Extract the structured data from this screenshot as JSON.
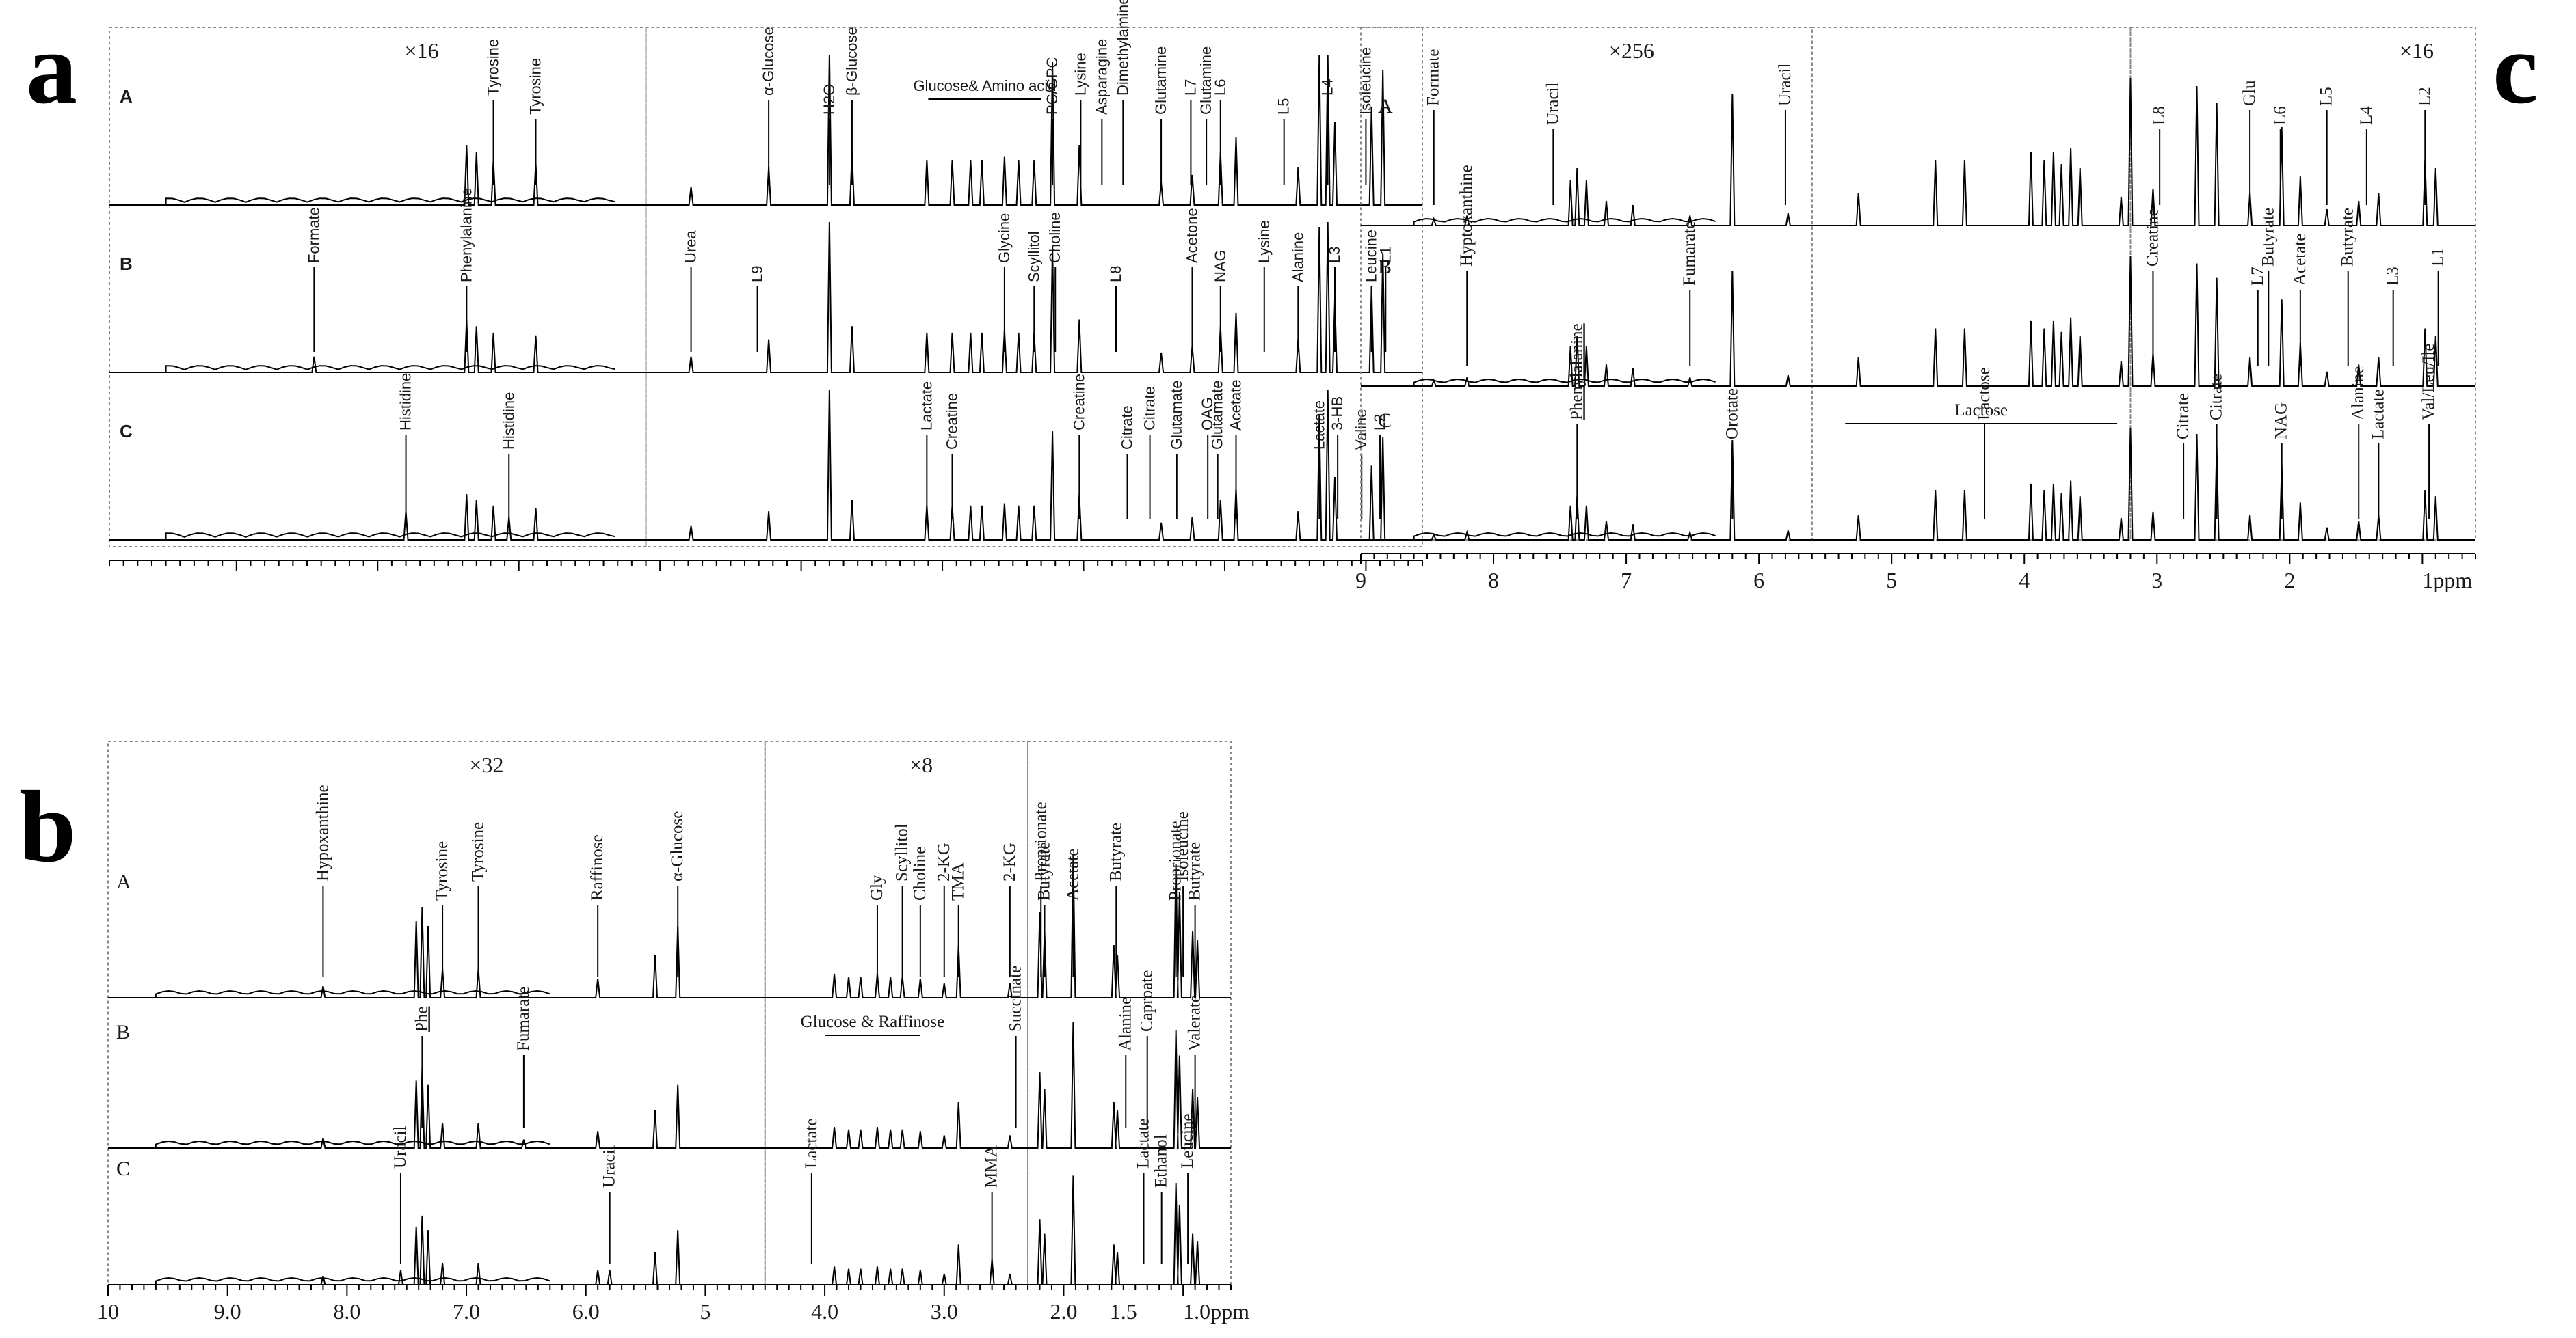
{
  "chart_data": [
    {
      "type": "line",
      "panel": "a",
      "title": "",
      "xlabel": "ppm",
      "xlim": [
        9.9,
        0.6
      ],
      "spectra": [
        "A",
        "B",
        "C"
      ],
      "expansion": [
        {
          "label": "×16",
          "region": [
            9.9,
            6.1
          ]
        }
      ],
      "regions": [
        [
          9.9,
          6.1
        ],
        [
          6.1,
          0.6
        ]
      ],
      "water_cut": [
        4.85,
        4.7
      ],
      "bracket_labels": [
        {
          "spectrum": "A",
          "text": "Glucose& Amino acid",
          "from": 4.1,
          "to": 3.3
        }
      ],
      "annotations": {
        "A": [
          {
            "label": "Tyrosine",
            "ppm": 7.18
          },
          {
            "label": "Tyrosine",
            "ppm": 6.88
          },
          {
            "label": "α-Glucose",
            "ppm": 5.23
          },
          {
            "label": "H2O",
            "ppm": 4.8
          },
          {
            "label": "β-Glucose",
            "ppm": 4.64
          },
          {
            "label": "PC/GPC",
            "ppm": 3.22
          },
          {
            "label": "Lysine",
            "ppm": 3.02
          },
          {
            "label": "Asparagine",
            "ppm": 2.87
          },
          {
            "label": "Dimethylamine",
            "ppm": 2.72
          },
          {
            "label": "Glutamine",
            "ppm": 2.45
          },
          {
            "label": "L7",
            "ppm": 2.24
          },
          {
            "label": "Glutamine",
            "ppm": 2.13
          },
          {
            "label": "L6",
            "ppm": 2.03
          },
          {
            "label": "L5",
            "ppm": 1.58
          },
          {
            "label": "L4",
            "ppm": 1.27
          },
          {
            "label": "Isoleucine",
            "ppm": 1.0
          }
        ],
        "B": [
          {
            "label": "Formate",
            "ppm": 8.45
          },
          {
            "label": "Phenylalanine",
            "ppm": 7.37
          },
          {
            "label": "Urea",
            "ppm": 5.78
          },
          {
            "label": "L9",
            "ppm": 5.31
          },
          {
            "label": "Glycine",
            "ppm": 3.56
          },
          {
            "label": "Scyllitol",
            "ppm": 3.35
          },
          {
            "label": "Choline",
            "ppm": 3.2
          },
          {
            "label": "L8",
            "ppm": 2.77
          },
          {
            "label": "Acetone",
            "ppm": 2.23
          },
          {
            "label": "NAG",
            "ppm": 2.03
          },
          {
            "label": "Lysine",
            "ppm": 1.72
          },
          {
            "label": "Alanine",
            "ppm": 1.48
          },
          {
            "label": "L3",
            "ppm": 1.22
          },
          {
            "label": "Leucine",
            "ppm": 0.96
          },
          {
            "label": "L1",
            "ppm": 0.86
          }
        ],
        "C": [
          {
            "label": "Histidine",
            "ppm": 7.8
          },
          {
            "label": "Histidine",
            "ppm": 7.07
          },
          {
            "label": "Lactate",
            "ppm": 4.11
          },
          {
            "label": "Creatine",
            "ppm": 3.93
          },
          {
            "label": "Creatine",
            "ppm": 3.03
          },
          {
            "label": "Citrate",
            "ppm": 2.69
          },
          {
            "label": "Citrate",
            "ppm": 2.53
          },
          {
            "label": "Glutamate",
            "ppm": 2.34
          },
          {
            "label": "OAG",
            "ppm": 2.12
          },
          {
            "label": "Glutamate",
            "ppm": 2.05
          },
          {
            "label": "Acetate",
            "ppm": 1.92
          },
          {
            "label": "Lactate",
            "ppm": 1.33
          },
          {
            "label": "3-HB",
            "ppm": 1.2
          },
          {
            "label": "Valine",
            "ppm": 1.03
          },
          {
            "label": "L2",
            "ppm": 0.9
          }
        ]
      },
      "peaks": [
        {
          "ppm": 8.45,
          "h": 0.12,
          "in": "B"
        },
        {
          "ppm": 7.37,
          "h": 0.4
        },
        {
          "ppm": 7.3,
          "h": 0.35
        },
        {
          "ppm": 7.18,
          "h": 0.3
        },
        {
          "ppm": 6.88,
          "h": 0.28
        },
        {
          "ppm": 7.8,
          "h": 0.25,
          "in": "C"
        },
        {
          "ppm": 7.07,
          "h": 0.2,
          "in": "C"
        },
        {
          "ppm": 5.78,
          "h": 0.12
        },
        {
          "ppm": 5.23,
          "h": 0.25
        },
        {
          "ppm": 4.8,
          "h": 1.6
        },
        {
          "ppm": 4.64,
          "h": 0.35
        },
        {
          "ppm": 4.11,
          "h": 0.3
        },
        {
          "ppm": 3.93,
          "h": 0.3
        },
        {
          "ppm": 3.8,
          "h": 0.3
        },
        {
          "ppm": 3.72,
          "h": 0.3
        },
        {
          "ppm": 3.56,
          "h": 0.32
        },
        {
          "ppm": 3.46,
          "h": 0.3
        },
        {
          "ppm": 3.35,
          "h": 0.3
        },
        {
          "ppm": 3.22,
          "h": 0.95
        },
        {
          "ppm": 3.03,
          "h": 0.4
        },
        {
          "ppm": 2.45,
          "h": 0.15
        },
        {
          "ppm": 2.23,
          "h": 0.2
        },
        {
          "ppm": 2.03,
          "h": 0.35
        },
        {
          "ppm": 1.92,
          "h": 0.45
        },
        {
          "ppm": 1.48,
          "h": 0.25
        },
        {
          "ppm": 1.33,
          "h": 1.1
        },
        {
          "ppm": 1.27,
          "h": 1.5
        },
        {
          "ppm": 1.22,
          "h": 0.55
        },
        {
          "ppm": 0.96,
          "h": 0.65
        },
        {
          "ppm": 0.88,
          "h": 0.9
        }
      ]
    },
    {
      "type": "line",
      "panel": "b",
      "title": "",
      "xlabel": "ppm",
      "xlim": [
        10.0,
        0.6
      ],
      "ticks": [
        10,
        9.0,
        8.0,
        7.0,
        6.0,
        5,
        4.0,
        3.0,
        2.0,
        1.5,
        1.0
      ],
      "tick_labels": [
        "10",
        "9.0",
        "8.0",
        "7.0",
        "6.0",
        "5",
        "4.0",
        "3.0",
        "2.0",
        "1.5",
        "1.0ppm"
      ],
      "spectra": [
        "A",
        "B",
        "C"
      ],
      "expansion": [
        {
          "label": "×32",
          "region": [
            10.0,
            4.5
          ]
        },
        {
          "label": "×8",
          "region": [
            4.5,
            2.3
          ]
        }
      ],
      "regions": [
        [
          10.0,
          4.5
        ],
        [
          4.5,
          2.3
        ],
        [
          2.3,
          0.6
        ]
      ],
      "bracket_labels": [
        {
          "spectrum": "B",
          "text": "Glucose & Raffinose",
          "from": 4.0,
          "to": 3.2
        }
      ],
      "underlined_labels": [
        "Phe"
      ],
      "annotations": {
        "A": [
          {
            "label": "Hypoxanthine",
            "ppm": 8.2
          },
          {
            "label": "Tyrosine",
            "ppm": 7.2
          },
          {
            "label": "Tyrosine",
            "ppm": 6.9
          },
          {
            "label": "Raffinose",
            "ppm": 5.9
          },
          {
            "label": "α-Glucose",
            "ppm": 5.23
          },
          {
            "label": "Gly",
            "ppm": 3.56
          },
          {
            "label": "Scyllitol",
            "ppm": 3.35
          },
          {
            "label": "Choline",
            "ppm": 3.2
          },
          {
            "label": "2-KG",
            "ppm": 3.0
          },
          {
            "label": "TMA",
            "ppm": 2.88
          },
          {
            "label": "2-KG",
            "ppm": 2.45
          },
          {
            "label": "Butyrate",
            "ppm": 2.16
          },
          {
            "label": "Proprionate",
            "ppm": 2.19
          },
          {
            "label": "Acetate",
            "ppm": 1.92
          },
          {
            "label": "Butyrate",
            "ppm": 1.56
          },
          {
            "label": "Proprionate",
            "ppm": 1.06
          },
          {
            "label": "Isoleucine",
            "ppm": 1.0
          },
          {
            "label": "Butyrate",
            "ppm": 0.9
          }
        ],
        "B": [
          {
            "label": "Phe",
            "ppm": 7.37
          },
          {
            "label": "Fumarate",
            "ppm": 6.52
          },
          {
            "label": "Succinate",
            "ppm": 2.4
          },
          {
            "label": "Alanine",
            "ppm": 1.48
          },
          {
            "label": "Caproate",
            "ppm": 1.3
          },
          {
            "label": "Valerate",
            "ppm": 0.9
          }
        ],
        "C": [
          {
            "label": "Uracil",
            "ppm": 7.55
          },
          {
            "label": "Uracil",
            "ppm": 5.8
          },
          {
            "label": "Lactate",
            "ppm": 4.11
          },
          {
            "label": "MMA",
            "ppm": 2.6
          },
          {
            "label": "Lactate",
            "ppm": 1.33
          },
          {
            "label": "Ethanol",
            "ppm": 1.18
          },
          {
            "label": "Leucine",
            "ppm": 0.96
          }
        ]
      },
      "peaks": [
        {
          "ppm": 8.2,
          "h": 0.12
        },
        {
          "ppm": 7.42,
          "h": 0.8
        },
        {
          "ppm": 7.37,
          "h": 0.95
        },
        {
          "ppm": 7.32,
          "h": 0.75
        },
        {
          "ppm": 7.2,
          "h": 0.3
        },
        {
          "ppm": 6.9,
          "h": 0.3
        },
        {
          "ppm": 6.52,
          "h": 0.1,
          "in": "B"
        },
        {
          "ppm": 7.55,
          "h": 0.2,
          "in": "C"
        },
        {
          "ppm": 5.9,
          "h": 0.2
        },
        {
          "ppm": 5.8,
          "h": 0.2,
          "in": "C"
        },
        {
          "ppm": 5.42,
          "h": 0.45
        },
        {
          "ppm": 5.23,
          "h": 0.75
        },
        {
          "ppm": 3.92,
          "h": 0.25
        },
        {
          "ppm": 3.8,
          "h": 0.22
        },
        {
          "ppm": 3.7,
          "h": 0.22
        },
        {
          "ppm": 3.56,
          "h": 0.25
        },
        {
          "ppm": 3.45,
          "h": 0.22
        },
        {
          "ppm": 3.35,
          "h": 0.22
        },
        {
          "ppm": 3.2,
          "h": 0.2
        },
        {
          "ppm": 3.0,
          "h": 0.15
        },
        {
          "ppm": 2.88,
          "h": 0.55
        },
        {
          "ppm": 2.6,
          "h": 0.35,
          "in": "C"
        },
        {
          "ppm": 2.45,
          "h": 0.15
        },
        {
          "ppm": 2.2,
          "h": 0.9
        },
        {
          "ppm": 2.16,
          "h": 0.7
        },
        {
          "ppm": 1.92,
          "h": 1.5
        },
        {
          "ppm": 1.58,
          "h": 0.55
        },
        {
          "ppm": 1.55,
          "h": 0.45
        },
        {
          "ppm": 1.06,
          "h": 1.4
        },
        {
          "ppm": 1.03,
          "h": 1.1
        },
        {
          "ppm": 0.92,
          "h": 0.7
        },
        {
          "ppm": 0.88,
          "h": 0.6
        }
      ]
    },
    {
      "type": "line",
      "panel": "c",
      "title": "",
      "xlabel": "ppm",
      "xlim": [
        9.0,
        0.6
      ],
      "ticks": [
        9,
        8,
        7,
        6,
        5,
        4,
        3,
        2,
        1
      ],
      "tick_labels": [
        "9",
        "8",
        "7",
        "6",
        "5",
        "4",
        "3",
        "2",
        "1ppm"
      ],
      "spectra": [
        "A",
        "B",
        "C"
      ],
      "expansion": [
        {
          "label": "×256",
          "region": [
            9.0,
            5.6
          ]
        },
        {
          "label": "×16",
          "region": [
            3.2,
            0.6
          ]
        }
      ],
      "regions": [
        [
          9.0,
          5.6
        ],
        [
          5.6,
          3.2
        ],
        [
          3.2,
          0.6
        ]
      ],
      "bracket_labels": [
        {
          "spectrum": "C",
          "text": "Lactose",
          "from": 5.35,
          "to": 3.3
        }
      ],
      "underlined_labels": [
        "Phenylalanine"
      ],
      "annotations": {
        "A": [
          {
            "label": "Formate",
            "ppm": 8.45
          },
          {
            "label": "Uracil",
            "ppm": 7.55
          },
          {
            "label": "Uracil",
            "ppm": 5.8
          },
          {
            "label": "L8",
            "ppm": 2.98
          },
          {
            "label": "Glu",
            "ppm": 2.3
          },
          {
            "label": "L6",
            "ppm": 2.07
          },
          {
            "label": "L5",
            "ppm": 1.72
          },
          {
            "label": "L4",
            "ppm": 1.42
          },
          {
            "label": "L2",
            "ppm": 0.98
          }
        ],
        "B": [
          {
            "label": "Hyptoxanthine",
            "ppm": 8.2
          },
          {
            "label": "Fumarate",
            "ppm": 6.52
          },
          {
            "label": "Creatine",
            "ppm": 3.03
          },
          {
            "label": "L7",
            "ppm": 2.24
          },
          {
            "label": "Butyrate",
            "ppm": 2.16
          },
          {
            "label": "Acetate",
            "ppm": 1.92
          },
          {
            "label": "Butyrate",
            "ppm": 1.56
          },
          {
            "label": "L3",
            "ppm": 1.22
          },
          {
            "label": "L1",
            "ppm": 0.88
          }
        ],
        "C": [
          {
            "label": "Phenylalanine",
            "ppm": 7.37
          },
          {
            "label": "Orotate",
            "ppm": 6.2
          },
          {
            "label": "Lactose",
            "ppm": 4.3
          },
          {
            "label": "Citrate",
            "ppm": 2.8
          },
          {
            "label": "Citrate",
            "ppm": 2.55
          },
          {
            "label": "NAG",
            "ppm": 2.06
          },
          {
            "label": "Alanine",
            "ppm": 1.48
          },
          {
            "label": "Lactate",
            "ppm": 1.33
          },
          {
            "label": "Val/Leu/Ile",
            "ppm": 0.95
          }
        ]
      },
      "peaks": [
        {
          "ppm": 8.45,
          "h": 0.08
        },
        {
          "ppm": 8.2,
          "h": 0.12
        },
        {
          "ppm": 7.42,
          "h": 0.55
        },
        {
          "ppm": 7.37,
          "h": 0.7
        },
        {
          "ppm": 7.3,
          "h": 0.55
        },
        {
          "ppm": 7.15,
          "h": 0.3
        },
        {
          "ppm": 6.95,
          "h": 0.25
        },
        {
          "ppm": 6.52,
          "h": 0.12
        },
        {
          "ppm": 6.2,
          "h": 1.6
        },
        {
          "ppm": 5.78,
          "h": 0.15
        },
        {
          "ppm": 5.25,
          "h": 0.4
        },
        {
          "ppm": 4.67,
          "h": 0.8
        },
        {
          "ppm": 4.45,
          "h": 0.8
        },
        {
          "ppm": 3.95,
          "h": 0.9
        },
        {
          "ppm": 3.85,
          "h": 0.8
        },
        {
          "ppm": 3.78,
          "h": 0.9
        },
        {
          "ppm": 3.72,
          "h": 0.75
        },
        {
          "ppm": 3.65,
          "h": 0.95
        },
        {
          "ppm": 3.58,
          "h": 0.7
        },
        {
          "ppm": 3.27,
          "h": 0.35
        },
        {
          "ppm": 3.2,
          "h": 1.8
        },
        {
          "ppm": 3.03,
          "h": 0.45
        },
        {
          "ppm": 2.7,
          "h": 1.7
        },
        {
          "ppm": 2.55,
          "h": 1.5
        },
        {
          "ppm": 2.3,
          "h": 0.4
        },
        {
          "ppm": 2.06,
          "h": 1.2
        },
        {
          "ppm": 1.92,
          "h": 0.6
        },
        {
          "ppm": 1.72,
          "h": 0.2
        },
        {
          "ppm": 1.48,
          "h": 0.3
        },
        {
          "ppm": 1.33,
          "h": 0.4
        },
        {
          "ppm": 0.98,
          "h": 0.8
        },
        {
          "ppm": 0.9,
          "h": 0.7
        }
      ]
    }
  ],
  "panel_letters": {
    "a": "a",
    "b": "b",
    "c": "c"
  },
  "colors": {
    "ink": "#000000",
    "label": "#1a1a1a",
    "box": "#888888"
  }
}
